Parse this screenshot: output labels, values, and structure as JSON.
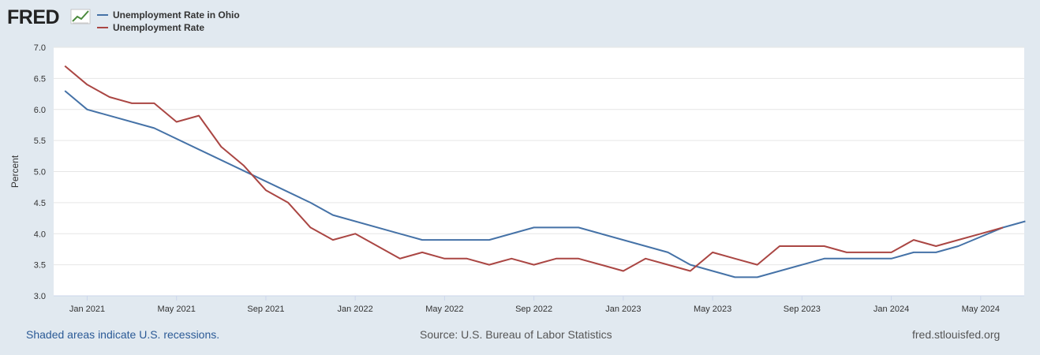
{
  "logo": {
    "text": "FRED"
  },
  "footer": {
    "recessions": "Shaded areas indicate U.S. recessions.",
    "source": "Source: U.S. Bureau of Labor Statistics",
    "site": "fred.stlouisfed.org"
  },
  "colors": {
    "background": "#e1e9f0",
    "ohio": "#4572a7",
    "us": "#aa4643",
    "grid": "#e6e6e6"
  },
  "chart_data": {
    "type": "line",
    "title": "",
    "ylabel": "Percent",
    "xlabel": "",
    "ylim": [
      3.0,
      7.0
    ],
    "yticks": [
      "3.0",
      "3.5",
      "4.0",
      "4.5",
      "5.0",
      "5.5",
      "6.0",
      "6.5",
      "7.0"
    ],
    "xlim": [
      "2020-11",
      "2024-06"
    ],
    "xticks": [
      {
        "label": "Jan 2021",
        "date": "2021-01"
      },
      {
        "label": "May 2021",
        "date": "2021-05"
      },
      {
        "label": "Sep 2021",
        "date": "2021-09"
      },
      {
        "label": "Jan 2022",
        "date": "2022-01"
      },
      {
        "label": "May 2022",
        "date": "2022-05"
      },
      {
        "label": "Sep 2022",
        "date": "2022-09"
      },
      {
        "label": "Jan 2023",
        "date": "2023-01"
      },
      {
        "label": "May 2023",
        "date": "2023-05"
      },
      {
        "label": "Sep 2023",
        "date": "2023-09"
      },
      {
        "label": "Jan 2024",
        "date": "2024-01"
      },
      {
        "label": "May 2024",
        "date": "2024-05"
      }
    ],
    "grid": true,
    "legend": "top-left",
    "series": [
      {
        "name": "Unemployment Rate in Ohio",
        "color": "#4572a7",
        "points": [
          [
            "2020-12",
            6.3
          ],
          [
            "2021-01",
            6.0
          ],
          [
            "2021-04",
            5.7
          ],
          [
            "2021-11",
            4.5
          ],
          [
            "2021-12",
            4.3
          ],
          [
            "2022-03",
            4.0
          ],
          [
            "2022-04",
            3.9
          ],
          [
            "2022-07",
            3.9
          ],
          [
            "2022-09",
            4.1
          ],
          [
            "2022-11",
            4.1
          ],
          [
            "2023-03",
            3.7
          ],
          [
            "2023-04",
            3.5
          ],
          [
            "2023-05",
            3.4
          ],
          [
            "2023-06",
            3.3
          ],
          [
            "2023-07",
            3.3
          ],
          [
            "2023-10",
            3.6
          ],
          [
            "2024-01",
            3.6
          ],
          [
            "2024-02",
            3.7
          ],
          [
            "2024-03",
            3.7
          ],
          [
            "2024-04",
            3.8
          ],
          [
            "2024-06",
            4.1
          ],
          [
            "2024-07",
            4.2
          ]
        ]
      },
      {
        "name": "Unemployment Rate",
        "color": "#aa4643",
        "points": [
          [
            "2020-12",
            6.7
          ],
          [
            "2021-01",
            6.4
          ],
          [
            "2021-02",
            6.2
          ],
          [
            "2021-03",
            6.1
          ],
          [
            "2021-04",
            6.1
          ],
          [
            "2021-05",
            5.8
          ],
          [
            "2021-06",
            5.9
          ],
          [
            "2021-07",
            5.4
          ],
          [
            "2021-08",
            5.1
          ],
          [
            "2021-09",
            4.7
          ],
          [
            "2021-10",
            4.5
          ],
          [
            "2021-11",
            4.1
          ],
          [
            "2021-12",
            3.9
          ],
          [
            "2022-01",
            4.0
          ],
          [
            "2022-02",
            3.8
          ],
          [
            "2022-03",
            3.6
          ],
          [
            "2022-04",
            3.7
          ],
          [
            "2022-05",
            3.6
          ],
          [
            "2022-06",
            3.6
          ],
          [
            "2022-07",
            3.5
          ],
          [
            "2022-08",
            3.6
          ],
          [
            "2022-09",
            3.5
          ],
          [
            "2022-10",
            3.6
          ],
          [
            "2022-11",
            3.6
          ],
          [
            "2022-12",
            3.5
          ],
          [
            "2023-01",
            3.4
          ],
          [
            "2023-02",
            3.6
          ],
          [
            "2023-03",
            3.5
          ],
          [
            "2023-04",
            3.4
          ],
          [
            "2023-05",
            3.7
          ],
          [
            "2023-06",
            3.6
          ],
          [
            "2023-07",
            3.5
          ],
          [
            "2023-08",
            3.8
          ],
          [
            "2023-09",
            3.8
          ],
          [
            "2023-10",
            3.8
          ],
          [
            "2023-11",
            3.7
          ],
          [
            "2023-12",
            3.7
          ],
          [
            "2024-01",
            3.7
          ],
          [
            "2024-02",
            3.9
          ],
          [
            "2024-03",
            3.8
          ],
          [
            "2024-04",
            3.9
          ],
          [
            "2024-05",
            4.0
          ],
          [
            "2024-06",
            4.1
          ]
        ]
      }
    ]
  }
}
